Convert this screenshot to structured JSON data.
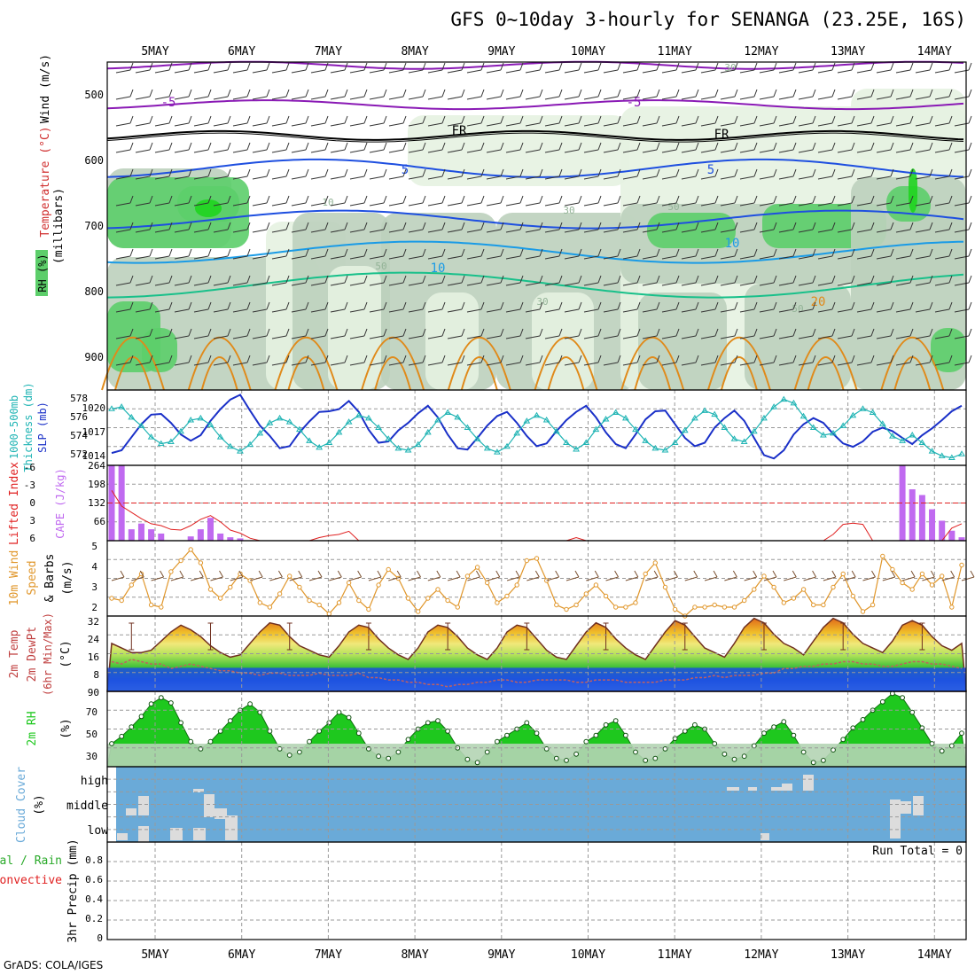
{
  "title": "GFS 0~10day 3-hourly for SENANGA (23.25E, 16S)",
  "credit": "GrADS: COLA/IGES",
  "colors": {
    "rh_light": "#e6f2e1",
    "rh_mid": "#bcd0bd",
    "rh_dark": "#93b397",
    "rh_green": "#5cce6a",
    "rh_bright": "#1fd41f",
    "temp_purple": "#8a1ab5",
    "temp_blue": "#1e4fe0",
    "temp_cyan": "#1a9be6",
    "temp_teal": "#18c08a",
    "temp_orange": "#e08a1a",
    "temp_red": "#e01a5a",
    "fr_line": "#000000",
    "slp": "#1a30c8",
    "thickness": "#1fb4b4",
    "cape": "#c06af0",
    "li": "#e02020",
    "wind10": "#e0962a",
    "barb10": "#7a5030",
    "cloud": "#6aaad8",
    "cloud_fill": "#dcdcdc",
    "rh2m": "#1ec81e",
    "temp_band": "#1e4fe0"
  },
  "dates": [
    "5MAY",
    "6MAY",
    "7MAY",
    "8MAY",
    "9MAY",
    "10MAY",
    "11MAY",
    "12MAY",
    "13MAY",
    "14MAY"
  ],
  "panels": {
    "upper": {
      "ylabel": "(millibars)",
      "ylabel_wind": "Wind (m/s)",
      "ylabel_temp": "Temperature (°C)",
      "ylabel_rh": "RH (%)",
      "yticks": [
        "500",
        "600",
        "700",
        "800",
        "900"
      ],
      "contour_labels": [
        "-5",
        "-5",
        "FR",
        "FR",
        "5",
        "5",
        "10",
        "10",
        "20",
        "30",
        "30",
        "50",
        "50",
        "10",
        "30",
        "50"
      ]
    },
    "slp": {
      "ylabel1": "1000-500mb",
      "ylabel2": "Thickness (dm)",
      "ylabel3": "SLP (mb)",
      "left_ticks": [
        "578",
        "576",
        "574",
        "572"
      ],
      "right_ticks": [
        "1020",
        "1017",
        "1014"
      ]
    },
    "cape": {
      "ylabel1": "Lifted Index",
      "ylabel2": "CAPE (J/kg)",
      "left_ticks": [
        "-6",
        "-3",
        "0",
        "3",
        "6"
      ],
      "right_ticks": [
        "264",
        "198",
        "132",
        "66"
      ]
    },
    "wind10": {
      "ylabel1": "10m Wind",
      "ylabel2": "Speed",
      "ylabel3": "& Barbs",
      "unit": "(m/s)",
      "yticks": [
        "5",
        "4",
        "3",
        "2"
      ]
    },
    "temp": {
      "ylabel1": "2m Temp",
      "ylabel2": "2m DewPt",
      "ylabel3": "(6hr Min/Max)",
      "unit": "(°C)",
      "yticks": [
        "32",
        "24",
        "16",
        "8",
        "90"
      ]
    },
    "rh": {
      "ylabel": "2m RH",
      "unit": "(%)",
      "yticks": [
        "70",
        "50",
        "30"
      ]
    },
    "cloud": {
      "ylabel": "Cloud Cover",
      "unit": "(%)",
      "yticks": [
        "high",
        "middle",
        "low"
      ]
    },
    "precip": {
      "ylabel1": "Total / Rain",
      "ylabel2": "Convective",
      "ylabel3": "3hr Precip (mm)",
      "yticks": [
        "0.8",
        "0.6",
        "0.4",
        "0.2",
        "0"
      ],
      "run_total": "Run Total = 0"
    }
  },
  "chart_data": [
    {
      "type": "line",
      "name": "slp_thickness",
      "x_unit": "3-hourly steps from 4 May 12Z",
      "series": [
        {
          "name": "SLP (mb)",
          "values": [
            1013.8,
            1014.2,
            1016.1,
            1018.0,
            1019.4,
            1019.5,
            1018.2,
            1016.5,
            1015.6,
            1016.4,
            1018.5,
            1020.2,
            1021.6,
            1022.3,
            1020.0,
            1017.8,
            1016.3,
            1014.5,
            1014.8,
            1016.8,
            1018.4,
            1019.8,
            1019.9,
            1020.2,
            1021.4,
            1019.8,
            1017.2,
            1015.3,
            1015.5,
            1017.1,
            1018.2,
            1019.6,
            1020.7,
            1019.0,
            1016.5,
            1014.5,
            1014.3,
            1016.0,
            1017.8,
            1019.2,
            1019.8,
            1018.2,
            1016.3,
            1014.8,
            1015.2,
            1017.0,
            1018.6,
            1019.8,
            1020.7,
            1019.0,
            1016.8,
            1015.1,
            1014.5,
            1016.5,
            1018.7,
            1019.9,
            1020.0,
            1018.0,
            1016.0,
            1014.8,
            1015.3,
            1017.5,
            1018.9,
            1020.0,
            1018.5,
            1016.0,
            1013.5,
            1013.0,
            1014.2,
            1016.5,
            1018.0,
            1018.9,
            1018.2,
            1016.6,
            1015.2,
            1014.7,
            1015.5,
            1016.9,
            1017.5,
            1017.0,
            1016.0,
            1015.1,
            1016.4,
            1017.4,
            1018.6,
            1019.9,
            1020.7
          ]
        },
        {
          "name": "1000-500mb Thickness (dm)",
          "values": [
            577.0,
            577.2,
            576.1,
            575.2,
            574.0,
            573.3,
            573.5,
            574.6,
            575.8,
            576.0,
            575.3,
            574.0,
            573.0,
            572.5,
            573.2,
            574.4,
            575.5,
            576.0,
            575.6,
            574.8,
            573.6,
            572.9,
            573.4,
            574.5,
            575.6,
            576.3,
            576.0,
            575.0,
            573.8,
            572.8,
            572.6,
            573.2,
            574.5,
            575.8,
            576.6,
            576.1,
            575.0,
            573.8,
            572.8,
            572.4,
            573.0,
            574.4,
            575.7,
            576.3,
            575.8,
            574.6,
            573.4,
            572.7,
            573.4,
            574.8,
            575.9,
            576.6,
            576.0,
            574.8,
            573.6,
            572.8,
            572.6,
            573.4,
            574.7,
            576.0,
            576.8,
            576.4,
            575.0,
            573.8,
            573.5,
            574.6,
            576.0,
            577.2,
            578.0,
            577.6,
            576.2,
            575.0,
            574.2,
            574.4,
            575.2,
            576.3,
            577.0,
            576.6,
            575.4,
            574.1,
            573.6,
            574.2,
            573.4,
            572.5,
            572.0,
            571.8,
            572.2
          ]
        }
      ]
    },
    {
      "type": "bar",
      "name": "cape_li",
      "series": [
        {
          "name": "CAPE (J/kg)",
          "values": [
            264,
            264,
            40,
            60,
            40,
            25,
            0,
            0,
            15,
            40,
            80,
            25,
            12,
            8,
            0,
            0,
            0,
            0,
            0,
            0,
            0,
            0,
            0,
            0,
            0,
            0,
            0,
            0,
            0,
            0,
            0,
            0,
            0,
            0,
            0,
            0,
            0,
            0,
            0,
            0,
            0,
            0,
            0,
            0,
            0,
            0,
            0,
            0,
            0,
            0,
            0,
            0,
            0,
            0,
            0,
            0,
            0,
            0,
            0,
            0,
            0,
            0,
            0,
            0,
            0,
            0,
            0,
            0,
            0,
            0,
            0,
            0,
            0,
            0,
            0,
            0,
            0,
            0,
            0,
            0,
            264,
            180,
            160,
            110,
            70,
            35,
            12,
            0
          ]
        },
        {
          "name": "Lifted Index",
          "values": [
            -2,
            0.5,
            1.5,
            2.5,
            3.3,
            3.6,
            4.2,
            4.3,
            3.6,
            2.6,
            2.0,
            3.0,
            4.3,
            4.8,
            5.6,
            6.5,
            6.5,
            6.5,
            6.5,
            6.4,
            6.2,
            5.5,
            5.2,
            5.0,
            4.5,
            6.5,
            6.5,
            6.5,
            6.5,
            6.5,
            6.5,
            6.5,
            6.5,
            6.5,
            6.5,
            6.5,
            6.5,
            6.5,
            6.5,
            6.5,
            6.5,
            6.5,
            6.5,
            6.5,
            6.5,
            6.5,
            6.5,
            5.5,
            6.5,
            6.5,
            6.5,
            6.5,
            6.5,
            6.5,
            6.5,
            6.5,
            6.5,
            6.5,
            6.5,
            6.5,
            6.5,
            6.5,
            6.5,
            6.5,
            6.5,
            6.5,
            6.5,
            6.5,
            6.5,
            6.5,
            6.5,
            6.5,
            6.5,
            5.0,
            3.4,
            3.2,
            3.4,
            6.5,
            6.5,
            6.5,
            6.5,
            6.5,
            6.5,
            6.5,
            6.5,
            4.0,
            3.3,
            2.6,
            1.5,
            2.7,
            2.0,
            0.5,
            -1.3,
            2.0,
            3.4,
            4.5,
            4.2,
            5.1
          ]
        }
      ]
    },
    {
      "type": "line",
      "name": "wind10",
      "series": [
        {
          "name": "10m Wind Speed (m/s)",
          "values": [
            2.6,
            2.5,
            3.2,
            3.7,
            2.3,
            2.2,
            3.8,
            4.3,
            4.8,
            4.2,
            3.0,
            2.6,
            3.1,
            3.7,
            3.4,
            2.4,
            2.2,
            2.8,
            3.6,
            3.1,
            2.5,
            2.3,
            1.9,
            2.4,
            3.3,
            2.5,
            2.1,
            3.2,
            3.9,
            3.5,
            2.6,
            2.0,
            2.6,
            3.0,
            2.5,
            2.2,
            3.6,
            4.0,
            3.3,
            2.4,
            2.7,
            3.2,
            4.3,
            4.4,
            3.4,
            2.3,
            2.1,
            2.3,
            2.8,
            3.2,
            2.7,
            2.2,
            2.2,
            2.4,
            3.7,
            4.2,
            3.1,
            2.1,
            1.8,
            2.2,
            2.2,
            2.3,
            2.2,
            2.2,
            2.5,
            3.0,
            3.6,
            3.1,
            2.4,
            2.6,
            3.0,
            2.3,
            2.3,
            3.1,
            3.7,
            2.7,
            2.0,
            2.3,
            4.5,
            3.9,
            3.3,
            3.0,
            3.7,
            3.2,
            3.6,
            2.2,
            4.1
          ]
        }
      ]
    },
    {
      "type": "area",
      "name": "temp2m",
      "series": [
        {
          "name": "2m Temp (°C)",
          "values": [
            21,
            19,
            17,
            17,
            18,
            22,
            26,
            29,
            27,
            24,
            20,
            17,
            15,
            16,
            21,
            26,
            30,
            29,
            24,
            20,
            18,
            16,
            15,
            20,
            26,
            29,
            28,
            23,
            19,
            16,
            14,
            19,
            26,
            29,
            28,
            24,
            19,
            16,
            14,
            19,
            26,
            29,
            28,
            23,
            18,
            15,
            14,
            20,
            26,
            30,
            28,
            23,
            19,
            16,
            14,
            20,
            26,
            31,
            29,
            24,
            19,
            17,
            15,
            21,
            28,
            32,
            30,
            25,
            21,
            19,
            16,
            22,
            28,
            32,
            30,
            25,
            21,
            19,
            17,
            22,
            29,
            31,
            29,
            24,
            20,
            18,
            21
          ]
        },
        {
          "name": "2m DewPt (°C)",
          "values": [
            13,
            12,
            14,
            13,
            12,
            12,
            10,
            11,
            12,
            11,
            10,
            9,
            9,
            8,
            8,
            7,
            8,
            8,
            7,
            7,
            7,
            8,
            7,
            7,
            7,
            8,
            6,
            6,
            5,
            5,
            4,
            4,
            3,
            3,
            2,
            3,
            3,
            4,
            4,
            5,
            5,
            4,
            4,
            5,
            5,
            5,
            5,
            4,
            4,
            5,
            5,
            5,
            4,
            4,
            4,
            4,
            5,
            5,
            5,
            6,
            6,
            7,
            6,
            7,
            7,
            7,
            8,
            8,
            10,
            10,
            11,
            11,
            12,
            12,
            13,
            13,
            12,
            12,
            11,
            11,
            12,
            13,
            13,
            12,
            12,
            11,
            10
          ]
        }
      ]
    },
    {
      "type": "area",
      "name": "rh2m",
      "series": [
        {
          "name": "2m RH (%)",
          "values": [
            40,
            47,
            56,
            66,
            78,
            84,
            79,
            60,
            42,
            35,
            42,
            52,
            62,
            72,
            78,
            70,
            52,
            35,
            29,
            32,
            42,
            52,
            60,
            70,
            65,
            50,
            35,
            28,
            26,
            32,
            44,
            54,
            60,
            62,
            52,
            36,
            25,
            22,
            32,
            42,
            48,
            54,
            60,
            50,
            35,
            26,
            24,
            30,
            42,
            48,
            58,
            62,
            48,
            32,
            24,
            26,
            35,
            45,
            52,
            58,
            54,
            40,
            30,
            25,
            28,
            38,
            50,
            56,
            61,
            48,
            32,
            22,
            24,
            34,
            44,
            55,
            63,
            72,
            80,
            88,
            84,
            70,
            55,
            40,
            33,
            38,
            50,
            62,
            76,
            86,
            70
          ]
        }
      ]
    },
    {
      "type": "bar",
      "name": "cloud_cover",
      "yticks": [
        "high",
        "middle",
        "low"
      ],
      "note": "Clear sky mostly; low/middle cloud on 5-6 May and 13 May"
    },
    {
      "type": "bar",
      "name": "precip3hr",
      "series": [
        {
          "name": "3hr Precip (mm)",
          "values": [
            0,
            0,
            0,
            0,
            0,
            0,
            0,
            0,
            0,
            0,
            0,
            0,
            0,
            0,
            0,
            0,
            0,
            0,
            0,
            0,
            0,
            0,
            0,
            0,
            0,
            0,
            0,
            0,
            0,
            0,
            0,
            0,
            0,
            0,
            0,
            0,
            0,
            0,
            0,
            0,
            0,
            0,
            0,
            0,
            0,
            0,
            0,
            0,
            0,
            0,
            0,
            0,
            0,
            0,
            0,
            0,
            0,
            0,
            0,
            0,
            0,
            0,
            0,
            0,
            0,
            0,
            0,
            0,
            0,
            0,
            0,
            0,
            0,
            0,
            0,
            0,
            0,
            0,
            0,
            0
          ]
        }
      ]
    }
  ]
}
